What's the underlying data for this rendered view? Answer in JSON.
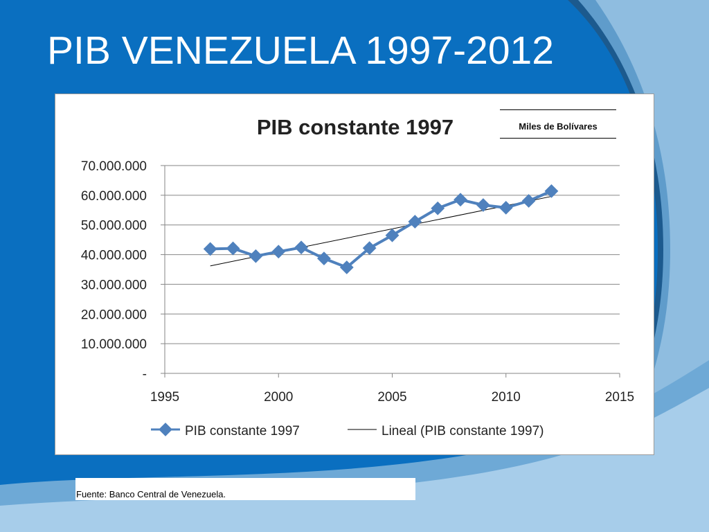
{
  "slide": {
    "title": "PIB VENEZUELA 1997-2012",
    "source": "Fuente: Banco Central de Venezuela.",
    "unit_label": "Miles de Bolívares"
  },
  "colors": {
    "background": "#0a6fc0",
    "series": "#4f81bd",
    "trend": "#000000",
    "grid": "#868686"
  },
  "chart_data": {
    "type": "line",
    "title": "PIB constante 1997",
    "xlabel": "",
    "ylabel": "",
    "xlim": [
      1995,
      2015
    ],
    "ylim": [
      0,
      70000000
    ],
    "x_ticks": [
      1995,
      2000,
      2005,
      2010,
      2015
    ],
    "x_tick_labels": [
      "1995",
      "2000",
      "2005",
      "2010",
      "2015"
    ],
    "y_ticks": [
      0,
      10000000,
      20000000,
      30000000,
      40000000,
      50000000,
      60000000,
      70000000
    ],
    "y_tick_labels": [
      "-",
      "10.000.000",
      "20.000.000",
      "30.000.000",
      "40.000.000",
      "50.000.000",
      "60.000.000",
      "70.000.000"
    ],
    "grid": true,
    "legend_position": "bottom",
    "series": [
      {
        "name": "PIB constante 1997",
        "marker": "diamond",
        "x": [
          1997,
          1998,
          1999,
          2000,
          2001,
          2002,
          2003,
          2004,
          2005,
          2006,
          2007,
          2008,
          2009,
          2010,
          2011,
          2012
        ],
        "y": [
          41900000,
          42100000,
          39500000,
          41000000,
          42400000,
          38700000,
          35700000,
          42200000,
          46500000,
          51100000,
          55600000,
          58500000,
          56700000,
          55800000,
          58100000,
          61400000
        ]
      },
      {
        "name": "Lineal (PIB constante 1997)",
        "type": "trendline",
        "x": [
          1997,
          2012
        ],
        "y": [
          36200000,
          59600000
        ]
      }
    ]
  }
}
